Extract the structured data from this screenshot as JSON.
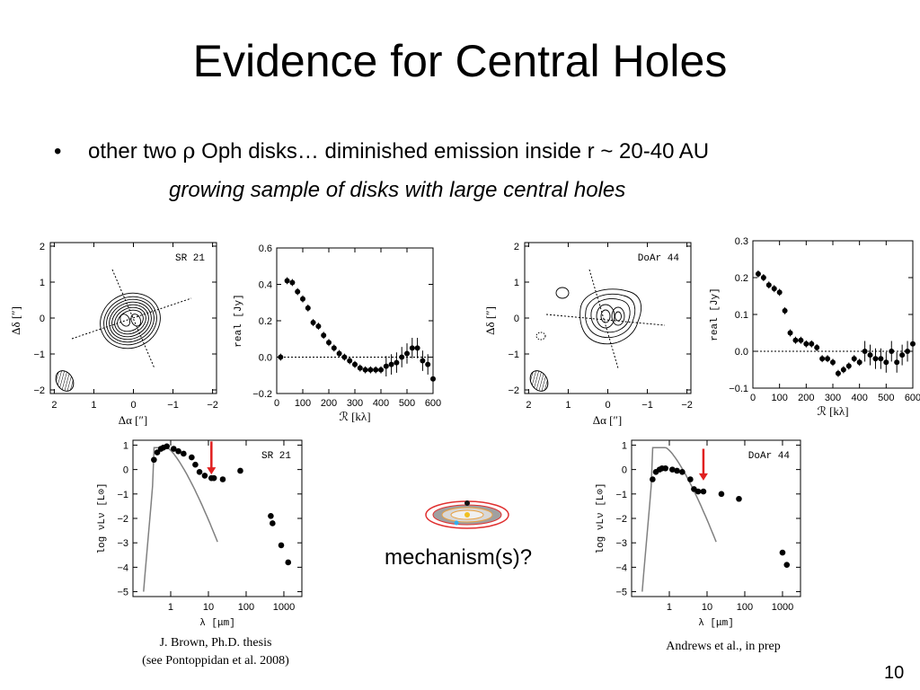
{
  "title": "Evidence for Central Holes",
  "bullet": {
    "marker": "•",
    "text_pre": "other two ",
    "rho": "ρ",
    "text_post": " Oph disks… diminished emission inside r ~ 20-40 AU"
  },
  "subtitle": "growing sample of disks with large central holes",
  "mechanism": "mechanism(s)?",
  "page_number": "10",
  "citations": {
    "left_line1": "J. Brown, Ph.D. thesis",
    "left_line2": "(see Pontoppidan et al. 2008)",
    "right": "Andrews et al., in prep"
  },
  "colors": {
    "arrow": "#e02020",
    "model_line": "#808080",
    "disk_ring": "#e03030"
  },
  "chart_data": [
    {
      "type": "contour",
      "label": "SR 21",
      "xlabel": "Δα [″]",
      "ylabel": "Δδ [″]",
      "xticks": [
        "2",
        "1",
        "0",
        "−1",
        "−2"
      ],
      "yticks": [
        "2",
        "1",
        "0",
        "−1",
        "−2"
      ],
      "xlim": [
        2.1,
        -2.1
      ],
      "ylim": [
        -2.1,
        2.1
      ]
    },
    {
      "type": "scatter",
      "xlabel": "ℛ [kλ]",
      "ylabel": "real [Jy]",
      "xticks": [
        "0",
        "100",
        "200",
        "300",
        "400",
        "500",
        "600"
      ],
      "yticks": [
        "0.6",
        "0.4",
        "0.2",
        "0.0",
        "−0.2"
      ],
      "xlim": [
        0,
        600
      ],
      "ylim": [
        -0.2,
        0.6
      ],
      "x": [
        15,
        40,
        60,
        80,
        100,
        120,
        140,
        160,
        180,
        200,
        220,
        240,
        260,
        280,
        300,
        320,
        340,
        360,
        380,
        400,
        420,
        440,
        460,
        480,
        500,
        520,
        540,
        560,
        580,
        600
      ],
      "y": [
        0.0,
        0.42,
        0.41,
        0.36,
        0.32,
        0.27,
        0.19,
        0.17,
        0.12,
        0.08,
        0.05,
        0.02,
        0.0,
        -0.02,
        -0.04,
        -0.06,
        -0.07,
        -0.07,
        -0.07,
        -0.07,
        -0.05,
        -0.04,
        -0.03,
        0.0,
        0.02,
        0.05,
        0.05,
        -0.02,
        -0.04,
        -0.12
      ]
    },
    {
      "type": "contour",
      "label": "DoAr 44",
      "xlabel": "Δα [″]",
      "ylabel": "Δδ [″]",
      "xticks": [
        "2",
        "1",
        "0",
        "−1",
        "−2"
      ],
      "yticks": [
        "2",
        "1",
        "0",
        "−1",
        "−2"
      ],
      "xlim": [
        2.1,
        -2.1
      ],
      "ylim": [
        -2.1,
        2.1
      ]
    },
    {
      "type": "scatter",
      "xlabel": "ℛ [kλ]",
      "ylabel": "real [Jy]",
      "xticks": [
        "0",
        "100",
        "200",
        "300",
        "400",
        "500",
        "600"
      ],
      "yticks": [
        "0.3",
        "0.2",
        "0.1",
        "0.0",
        "−0.1"
      ],
      "xlim": [
        0,
        600
      ],
      "ylim": [
        -0.1,
        0.3
      ],
      "x": [
        20,
        40,
        60,
        80,
        100,
        120,
        140,
        160,
        180,
        200,
        220,
        240,
        260,
        280,
        300,
        320,
        340,
        360,
        380,
        400,
        420,
        440,
        460,
        480,
        500,
        520,
        540,
        560,
        580,
        600
      ],
      "y": [
        0.21,
        0.2,
        0.18,
        0.17,
        0.16,
        0.11,
        0.05,
        0.03,
        0.03,
        0.02,
        0.02,
        0.01,
        -0.02,
        -0.02,
        -0.03,
        -0.06,
        -0.05,
        -0.04,
        -0.02,
        -0.03,
        0.0,
        -0.01,
        -0.02,
        -0.02,
        -0.03,
        0.0,
        -0.03,
        -0.01,
        0.0,
        0.02
      ]
    },
    {
      "type": "scatter",
      "label": "SR 21",
      "xlabel": "λ [μm]",
      "ylabel": "log νLν [L⊙]",
      "xscale": "log",
      "xticks": [
        "1",
        "10",
        "100",
        "1000"
      ],
      "yticks": [
        "1",
        "0",
        "−1",
        "−2",
        "−3",
        "−4",
        "−5"
      ],
      "xlim": [
        0.1,
        3000
      ],
      "ylim": [
        -5.2,
        1.2
      ],
      "x": [
        0.36,
        0.44,
        0.55,
        0.64,
        0.79,
        1.2,
        1.6,
        2.2,
        3.6,
        4.5,
        5.8,
        8,
        12,
        14,
        24,
        70,
        450,
        500,
        850,
        1300
      ],
      "y": [
        0.4,
        0.7,
        0.85,
        0.9,
        0.95,
        0.85,
        0.75,
        0.65,
        0.5,
        0.2,
        -0.1,
        -0.25,
        -0.35,
        -0.35,
        -0.4,
        -0.05,
        -1.9,
        -2.2,
        -3.1,
        -3.8
      ]
    },
    {
      "type": "scatter",
      "label": "DoAr 44",
      "xlabel": "λ [μm]",
      "ylabel": "log νLν [L⊙]",
      "xscale": "log",
      "xticks": [
        "1",
        "10",
        "100",
        "1000"
      ],
      "yticks": [
        "1",
        "0",
        "−1",
        "−2",
        "−3",
        "−4",
        "−5"
      ],
      "xlim": [
        0.1,
        3000
      ],
      "ylim": [
        -5.2,
        1.2
      ],
      "x": [
        0.36,
        0.44,
        0.55,
        0.64,
        0.79,
        1.2,
        1.6,
        2.2,
        3.6,
        4.5,
        5.8,
        8,
        24,
        70,
        1000,
        1300
      ],
      "y": [
        -0.4,
        -0.1,
        0.0,
        0.05,
        0.05,
        0.0,
        -0.05,
        -0.1,
        -0.4,
        -0.8,
        -0.9,
        -0.9,
        -1.0,
        -1.2,
        -3.4,
        -3.9
      ]
    }
  ]
}
